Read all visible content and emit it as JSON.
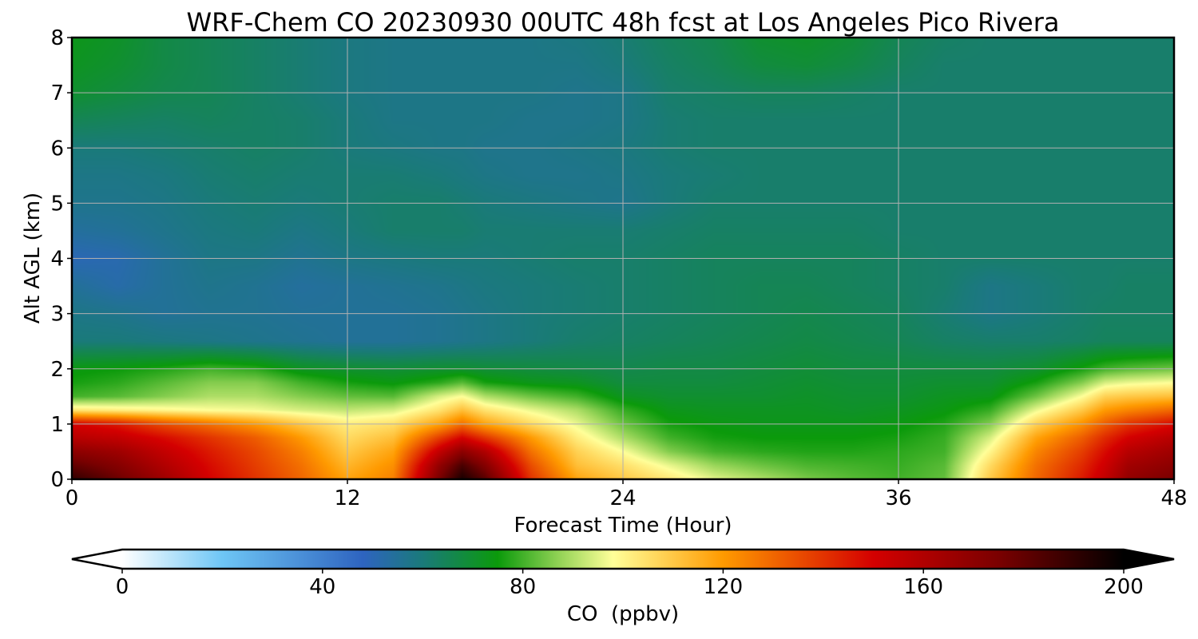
{
  "chart_data": {
    "type": "heatmap",
    "title": "WRF-Chem CO  20230930 00UTC 48h fcst at Los Angeles Pico Rivera",
    "xlabel": "Forecast Time (Hour)",
    "ylabel": "Alt AGL (km)",
    "xlim": [
      0,
      48
    ],
    "ylim": [
      0,
      8
    ],
    "xticks": [
      0,
      12,
      24,
      36,
      48
    ],
    "yticks": [
      0,
      1,
      2,
      3,
      4,
      5,
      6,
      7,
      8
    ],
    "grid": true,
    "x": [
      0,
      2,
      4,
      6,
      8,
      10,
      12,
      14,
      16,
      17,
      18,
      20,
      22,
      24,
      26,
      28,
      30,
      32,
      34,
      36,
      38,
      40,
      42,
      44,
      45,
      46,
      48
    ],
    "y": [
      0,
      0.25,
      0.5,
      0.75,
      1,
      1.25,
      1.5,
      1.75,
      2,
      2.5,
      3,
      3.5,
      4,
      4.5,
      5,
      5.5,
      6,
      6.5,
      7,
      7.5,
      8
    ],
    "z": [
      [
        190,
        178,
        165,
        150,
        140,
        130,
        118,
        125,
        175,
        195,
        182,
        140,
        118,
        110,
        103,
        95,
        90,
        85,
        82,
        80,
        83,
        110,
        130,
        145,
        155,
        168,
        175
      ],
      [
        180,
        172,
        160,
        148,
        138,
        128,
        114,
        122,
        168,
        185,
        172,
        135,
        112,
        105,
        96,
        88,
        84,
        81,
        80,
        79,
        82,
        106,
        128,
        142,
        152,
        164,
        170
      ],
      [
        170,
        165,
        155,
        145,
        136,
        125,
        110,
        118,
        155,
        170,
        160,
        128,
        108,
        98,
        86,
        80,
        78,
        77,
        77,
        78,
        80,
        100,
        124,
        138,
        148,
        158,
        165
      ],
      [
        158,
        155,
        148,
        140,
        132,
        120,
        106,
        112,
        138,
        150,
        140,
        120,
        102,
        90,
        80,
        76,
        75,
        75,
        75,
        76,
        79,
        94,
        118,
        132,
        142,
        150,
        158
      ],
      [
        150,
        145,
        135,
        128,
        120,
        110,
        102,
        105,
        118,
        128,
        118,
        106,
        96,
        84,
        76,
        74,
        73,
        73,
        73,
        74,
        77,
        86,
        108,
        122,
        132,
        140,
        148
      ],
      [
        104,
        102,
        100,
        98,
        97,
        94,
        92,
        94,
        104,
        112,
        104,
        96,
        90,
        79,
        73,
        72,
        72,
        72,
        71,
        72,
        74,
        79,
        96,
        110,
        120,
        124,
        130
      ],
      [
        80,
        82,
        86,
        90,
        90,
        86,
        83,
        82,
        94,
        98,
        90,
        84,
        80,
        72,
        70,
        70,
        70,
        71,
        70,
        70,
        72,
        73,
        84,
        98,
        108,
        110,
        112
      ],
      [
        76,
        78,
        82,
        86,
        86,
        80,
        76,
        74,
        78,
        82,
        76,
        73,
        72,
        68,
        68,
        68,
        69,
        70,
        69,
        69,
        70,
        70,
        76,
        86,
        94,
        96,
        98
      ],
      [
        74,
        75,
        77,
        80,
        78,
        72,
        70,
        69,
        70,
        70,
        69,
        68,
        67,
        66,
        67,
        67,
        68,
        69,
        68,
        68,
        68,
        68,
        70,
        76,
        80,
        82,
        84
      ],
      [
        60,
        60,
        59,
        58,
        57,
        56,
        55,
        55,
        56,
        57,
        58,
        60,
        62,
        63,
        64,
        65,
        66,
        67,
        66,
        65,
        63,
        62,
        62,
        63,
        64,
        64,
        64
      ],
      [
        58,
        57,
        55,
        56,
        56,
        55,
        55,
        55,
        56,
        57,
        58,
        60,
        61,
        62,
        63,
        64,
        65,
        66,
        65,
        64,
        61,
        58,
        60,
        62,
        63,
        63,
        63
      ],
      [
        55,
        52,
        55,
        57,
        56,
        54,
        55,
        56,
        57,
        58,
        59,
        60,
        61,
        62,
        63,
        64,
        65,
        65,
        64,
        63,
        62,
        58,
        60,
        62,
        62,
        63,
        63
      ],
      [
        50,
        51,
        55,
        58,
        58,
        56,
        58,
        59,
        60,
        60,
        60,
        61,
        62,
        62,
        63,
        64,
        64,
        64,
        64,
        63,
        62,
        62,
        62,
        62,
        62,
        62,
        62
      ],
      [
        54,
        55,
        57,
        59,
        60,
        58,
        60,
        62,
        62,
        62,
        61,
        61,
        61,
        61,
        62,
        63,
        63,
        63,
        63,
        62,
        62,
        62,
        62,
        62,
        62,
        62,
        62
      ],
      [
        57,
        57,
        58,
        60,
        61,
        60,
        61,
        62,
        62,
        61,
        60,
        59,
        58,
        57,
        60,
        62,
        62,
        62,
        62,
        62,
        62,
        62,
        62,
        62,
        62,
        62,
        62
      ],
      [
        58,
        58,
        59,
        61,
        62,
        61,
        61,
        61,
        60,
        59,
        58,
        57,
        57,
        58,
        60,
        61,
        62,
        62,
        62,
        62,
        62,
        62,
        62,
        62,
        62,
        62,
        62
      ],
      [
        60,
        60,
        61,
        62,
        63,
        62,
        60,
        59,
        58,
        58,
        57,
        57,
        58,
        59,
        61,
        62,
        62,
        62,
        62,
        62,
        62,
        62,
        62,
        62,
        62,
        62,
        62
      ],
      [
        65,
        64,
        63,
        64,
        63,
        62,
        60,
        58,
        58,
        58,
        58,
        57,
        57,
        58,
        61,
        62,
        62,
        62,
        62,
        62,
        62,
        62,
        62,
        62,
        62,
        62,
        62
      ],
      [
        70,
        68,
        66,
        65,
        63,
        61,
        59,
        58,
        58,
        58,
        58,
        58,
        57,
        58,
        62,
        63,
        64,
        64,
        63,
        62,
        62,
        62,
        62,
        62,
        62,
        62,
        62
      ],
      [
        72,
        70,
        67,
        65,
        63,
        61,
        59,
        58,
        58,
        58,
        58,
        58,
        58,
        60,
        63,
        65,
        68,
        69,
        67,
        64,
        62,
        62,
        62,
        62,
        62,
        62,
        62
      ],
      [
        73,
        71,
        67,
        65,
        63,
        61,
        59,
        58,
        58,
        58,
        58,
        58,
        59,
        61,
        64,
        66,
        70,
        71,
        69,
        65,
        63,
        62,
        62,
        62,
        62,
        62,
        62
      ]
    ],
    "colorbar": {
      "label": "CO  (ppbv)",
      "min": 0,
      "max": 200,
      "ticks": [
        0,
        40,
        80,
        120,
        160,
        200
      ],
      "extend": "both",
      "colors": [
        {
          "value": 0,
          "color": "#ffffff"
        },
        {
          "value": 20,
          "color": "#6ec6f5"
        },
        {
          "value": 48,
          "color": "#2e64c0"
        },
        {
          "value": 60,
          "color": "#1a7a7a"
        },
        {
          "value": 75,
          "color": "#0b9a0b"
        },
        {
          "value": 88,
          "color": "#9ad65a"
        },
        {
          "value": 98,
          "color": "#ffff99"
        },
        {
          "value": 120,
          "color": "#ff9a00"
        },
        {
          "value": 150,
          "color": "#d40000"
        },
        {
          "value": 175,
          "color": "#7a0000"
        },
        {
          "value": 200,
          "color": "#000000"
        }
      ]
    }
  }
}
